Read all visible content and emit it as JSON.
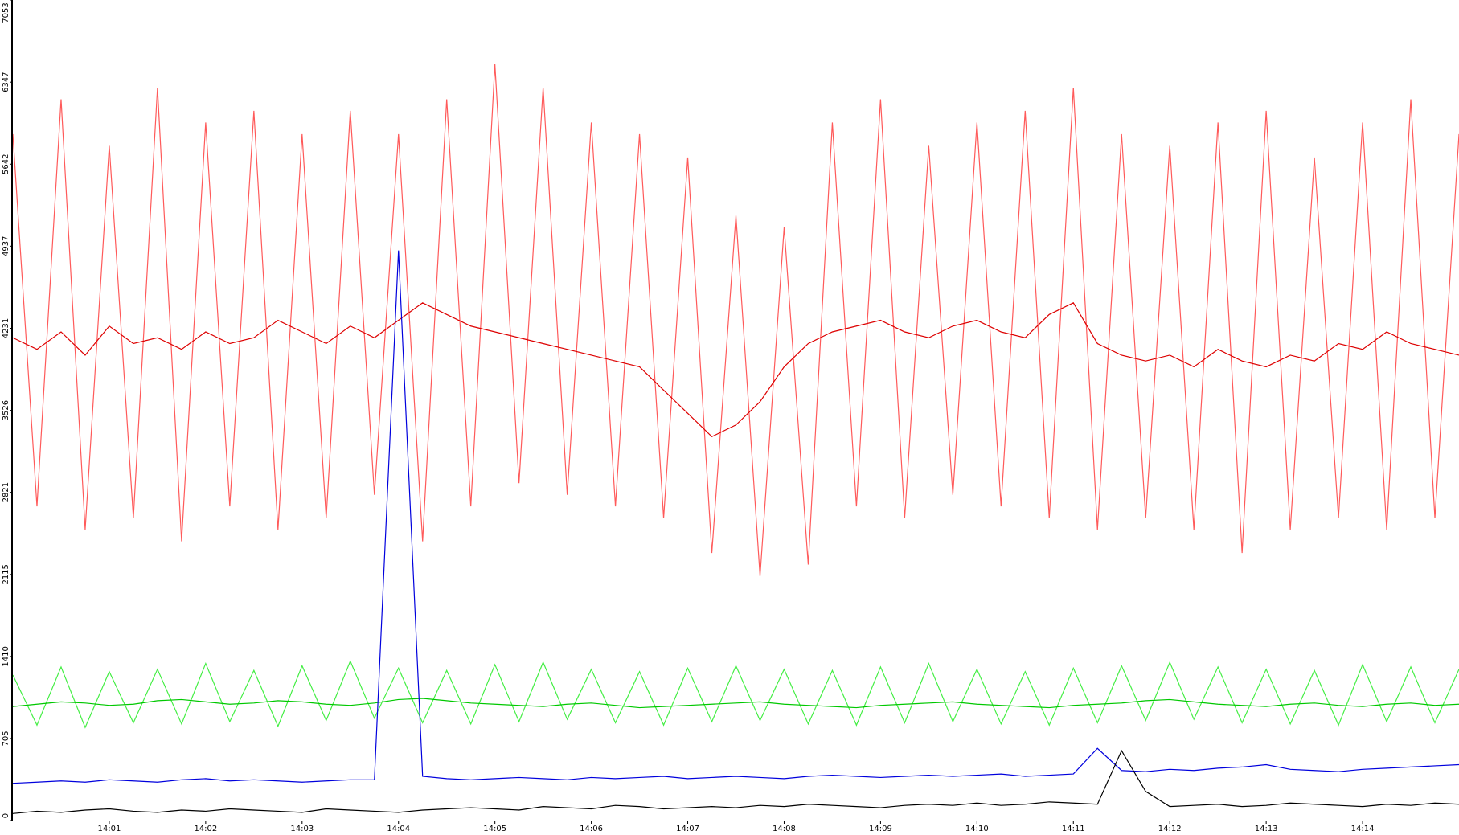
{
  "chart_data": {
    "type": "line",
    "x": [
      840,
      840.25,
      840.5,
      840.75,
      841,
      841.25,
      841.5,
      841.75,
      842,
      842.25,
      842.5,
      842.75,
      843,
      843.25,
      843.5,
      843.75,
      844,
      844.25,
      844.5,
      844.75,
      845,
      845.25,
      845.5,
      845.75,
      846,
      846.25,
      846.5,
      846.75,
      847,
      847.25,
      847.5,
      847.75,
      848,
      848.25,
      848.5,
      848.75,
      849,
      849.25,
      849.5,
      849.75,
      850,
      850.25,
      850.5,
      850.75,
      851,
      851.25,
      851.5,
      851.75,
      852,
      852.25,
      852.5,
      852.75,
      853,
      853.25,
      853.5,
      853.75,
      854,
      854.25,
      854.5,
      854.75,
      855
    ],
    "xlim": [
      840,
      855
    ],
    "xticks": [
      {
        "value": 841,
        "label": "14:01"
      },
      {
        "value": 842,
        "label": "14:02"
      },
      {
        "value": 843,
        "label": "14:03"
      },
      {
        "value": 844,
        "label": "14:04"
      },
      {
        "value": 845,
        "label": "14:05"
      },
      {
        "value": 846,
        "label": "14:06"
      },
      {
        "value": 847,
        "label": "14:07"
      },
      {
        "value": 848,
        "label": "14:08"
      },
      {
        "value": 849,
        "label": "14:09"
      },
      {
        "value": 850,
        "label": "14:10"
      },
      {
        "value": 851,
        "label": "14:11"
      },
      {
        "value": 852,
        "label": "14:12"
      },
      {
        "value": 853,
        "label": "14:13"
      },
      {
        "value": 854,
        "label": "14:14"
      }
    ],
    "ylim": [
      0,
      7053
    ],
    "yticks": [
      0,
      705,
      1410,
      2115,
      2821,
      3526,
      4231,
      4937,
      5642,
      6347,
      7053
    ],
    "series": [
      {
        "color": "#ff5a5a",
        "values": [
          5900,
          2700,
          6200,
          2500,
          5800,
          2600,
          6300,
          2400,
          6000,
          2700,
          6100,
          2500,
          5900,
          2600,
          6100,
          2800,
          5900,
          2400,
          6200,
          2700,
          6500,
          2900,
          6300,
          2800,
          6000,
          2700,
          5900,
          2600,
          5700,
          2300,
          5200,
          2100,
          5100,
          2200,
          6000,
          2700,
          6200,
          2600,
          5800,
          2800,
          6000,
          2700,
          6100,
          2600,
          6300,
          2500,
          5900,
          2600,
          5800,
          2500,
          6000,
          2300,
          6100,
          2500,
          5700,
          2600,
          6000,
          2500,
          6200,
          2600,
          5900
        ]
      },
      {
        "color": "#dd0000",
        "values": [
          4150,
          4050,
          4200,
          4000,
          4250,
          4100,
          4150,
          4050,
          4200,
          4100,
          4150,
          4300,
          4200,
          4100,
          4250,
          4150,
          4300,
          4450,
          4350,
          4250,
          4200,
          4150,
          4100,
          4050,
          4000,
          3950,
          3900,
          3700,
          3500,
          3300,
          3400,
          3600,
          3900,
          4100,
          4200,
          4250,
          4300,
          4200,
          4150,
          4250,
          4300,
          4200,
          4150,
          4350,
          4450,
          4100,
          4000,
          3950,
          4000,
          3900,
          4050,
          3950,
          3900,
          4000,
          3950,
          4100,
          4050,
          4200,
          4100,
          4050,
          4000
        ]
      },
      {
        "color": "#44ee44",
        "values": [
          1250,
          820,
          1320,
          800,
          1280,
          840,
          1300,
          830,
          1350,
          850,
          1290,
          810,
          1330,
          860,
          1370,
          880,
          1310,
          840,
          1290,
          830,
          1340,
          850,
          1360,
          870,
          1300,
          840,
          1280,
          820,
          1310,
          850,
          1330,
          860,
          1300,
          830,
          1290,
          820,
          1320,
          840,
          1350,
          850,
          1300,
          830,
          1280,
          820,
          1310,
          840,
          1330,
          860,
          1360,
          870,
          1320,
          840,
          1300,
          830,
          1290,
          820,
          1340,
          850,
          1320,
          840,
          1300
        ]
      },
      {
        "color": "#00c800",
        "values": [
          980,
          1000,
          1020,
          1010,
          990,
          1000,
          1030,
          1040,
          1020,
          1000,
          1010,
          1030,
          1020,
          1000,
          990,
          1010,
          1040,
          1050,
          1030,
          1010,
          1000,
          990,
          980,
          1000,
          1010,
          990,
          970,
          980,
          990,
          1000,
          1010,
          1020,
          1000,
          990,
          980,
          970,
          990,
          1000,
          1010,
          1020,
          1000,
          990,
          980,
          970,
          990,
          1000,
          1010,
          1030,
          1040,
          1020,
          1000,
          990,
          980,
          1000,
          1010,
          990,
          980,
          1000,
          1010,
          990,
          1000
        ]
      },
      {
        "color": "#0000dd",
        "values": [
          320,
          330,
          340,
          330,
          350,
          340,
          330,
          350,
          360,
          340,
          350,
          340,
          330,
          340,
          350,
          350,
          4900,
          380,
          360,
          350,
          360,
          370,
          360,
          350,
          370,
          360,
          370,
          380,
          360,
          370,
          380,
          370,
          360,
          380,
          390,
          380,
          370,
          380,
          390,
          380,
          390,
          400,
          380,
          390,
          400,
          620,
          430,
          420,
          440,
          430,
          450,
          460,
          480,
          440,
          430,
          420,
          440,
          450,
          460,
          470,
          480
        ]
      },
      {
        "color": "#000000",
        "values": [
          60,
          80,
          70,
          90,
          100,
          80,
          70,
          90,
          80,
          100,
          90,
          80,
          70,
          100,
          90,
          80,
          70,
          90,
          100,
          110,
          100,
          90,
          120,
          110,
          100,
          130,
          120,
          100,
          110,
          120,
          110,
          130,
          120,
          140,
          130,
          120,
          110,
          130,
          140,
          130,
          150,
          130,
          140,
          160,
          150,
          140,
          600,
          250,
          120,
          130,
          140,
          120,
          130,
          150,
          140,
          130,
          120,
          140,
          130,
          150,
          140
        ]
      }
    ]
  }
}
